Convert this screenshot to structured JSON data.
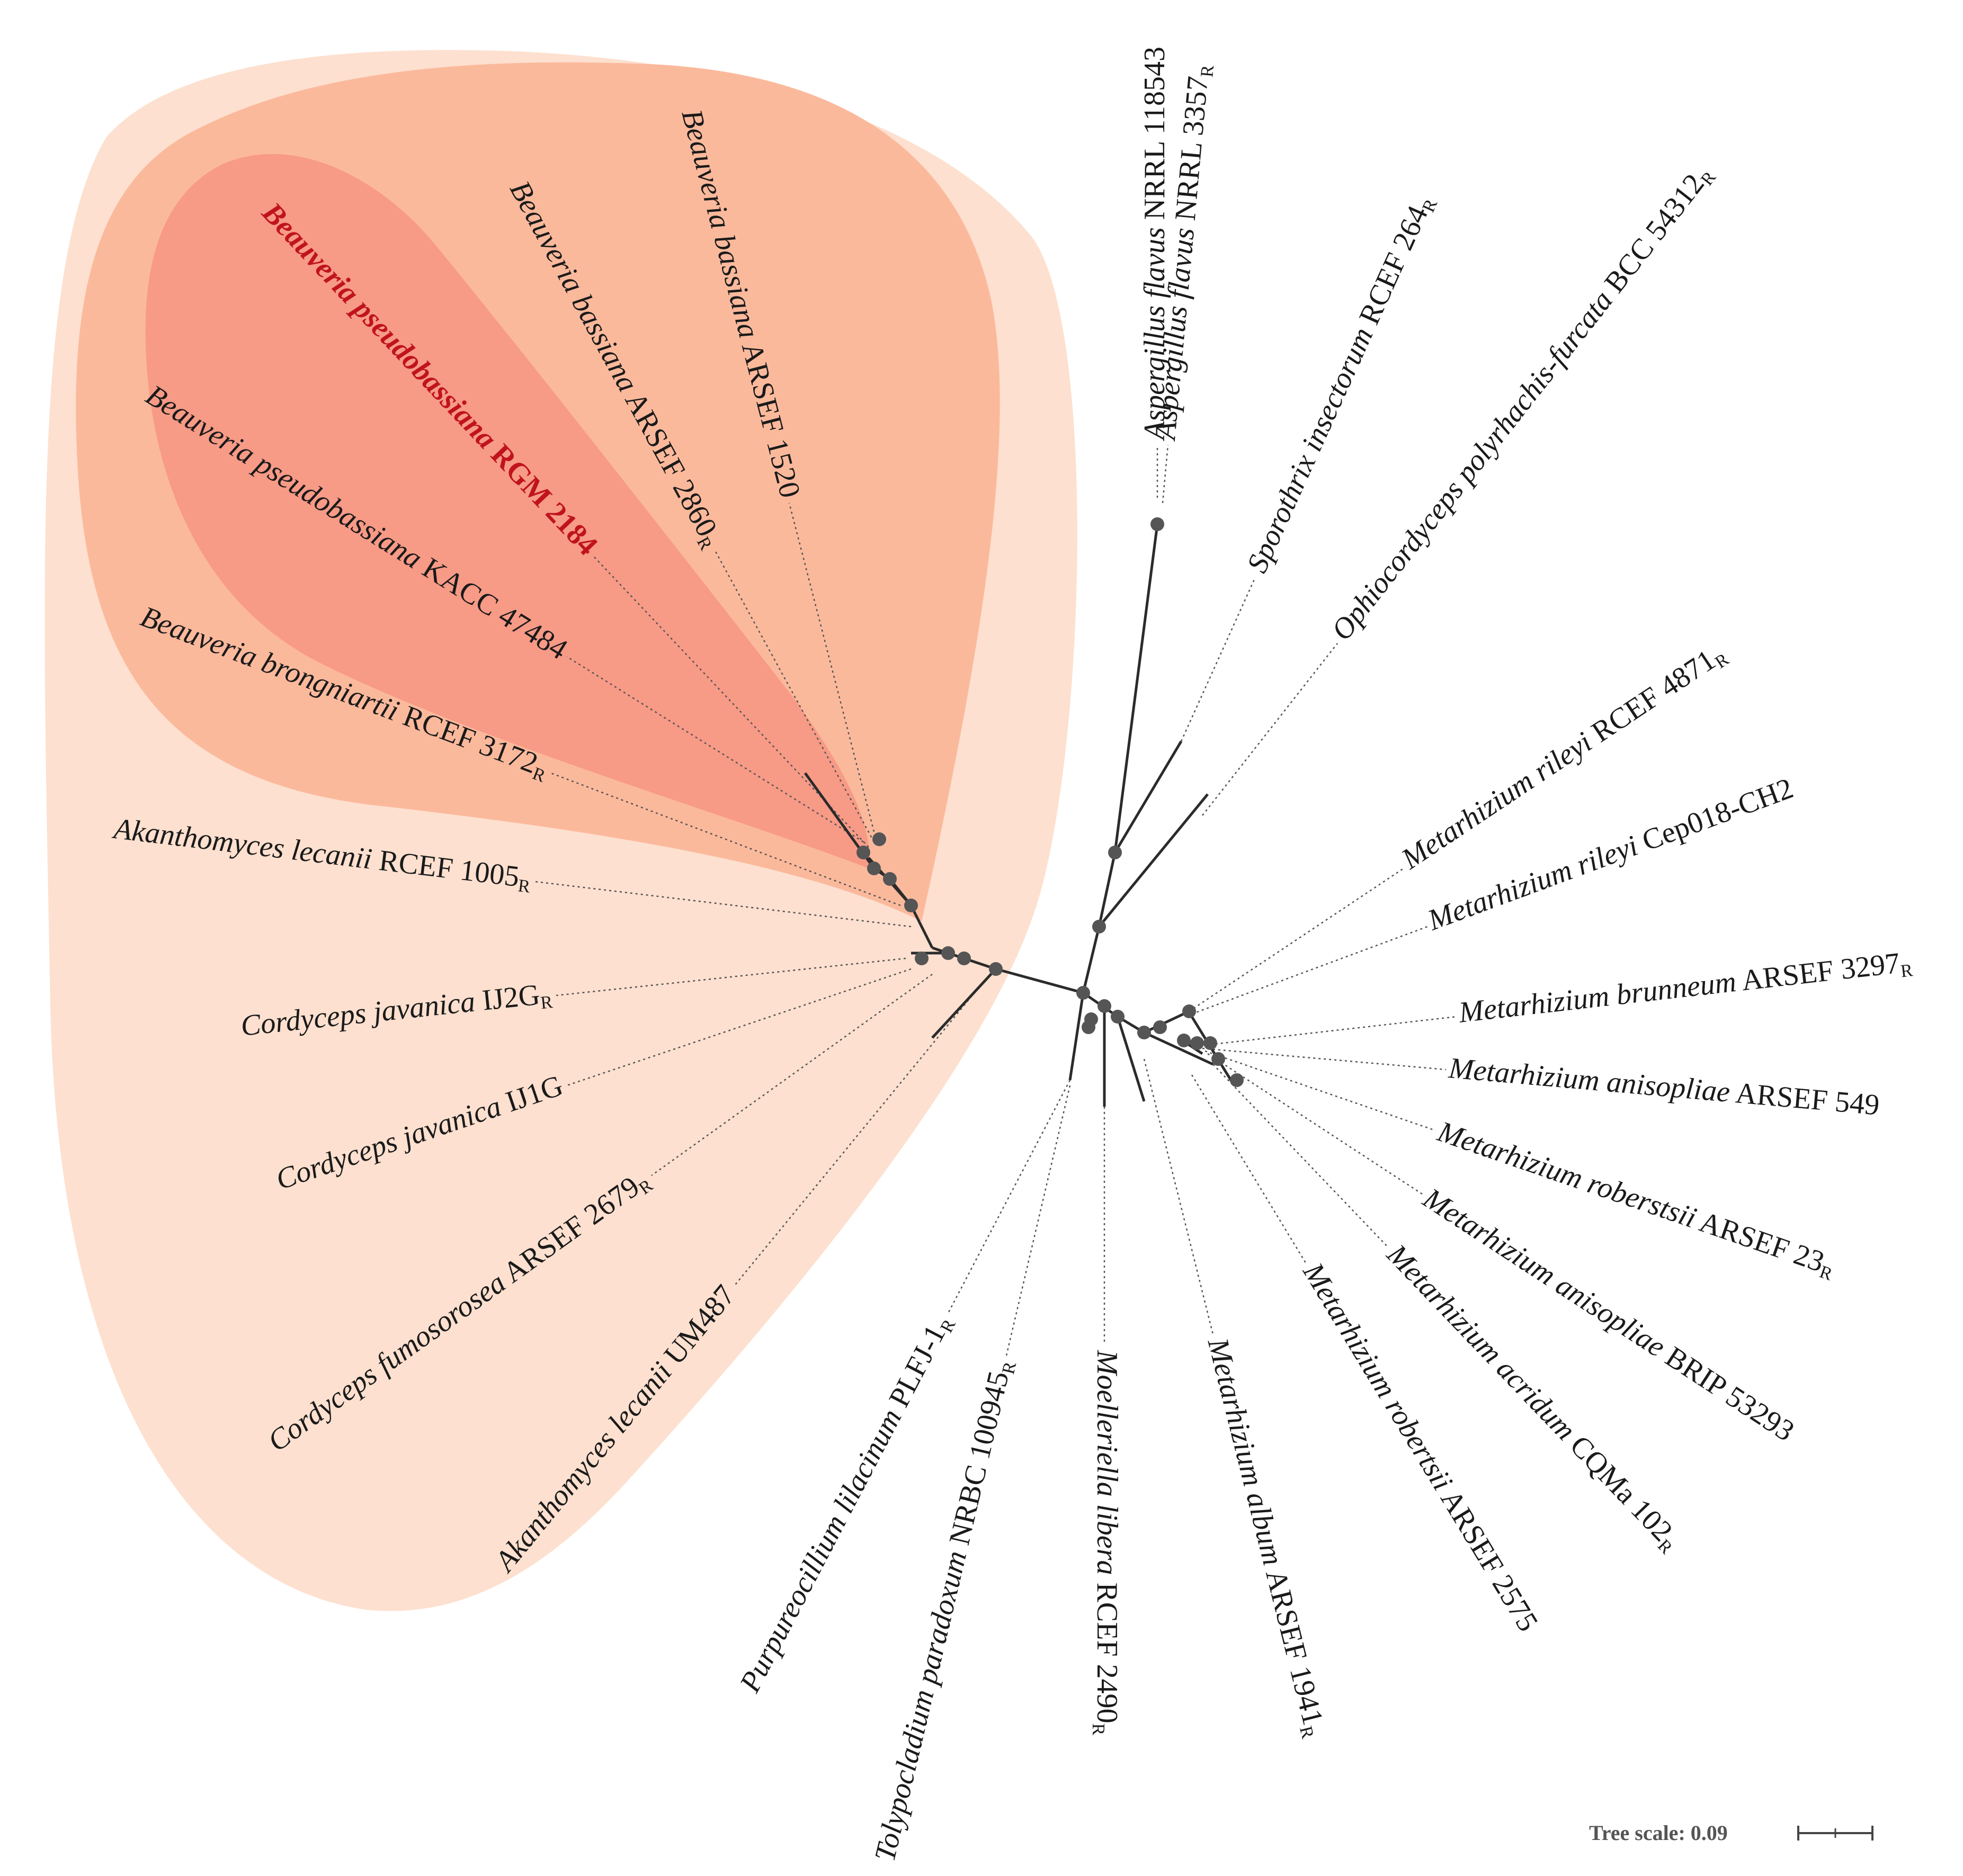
{
  "colors": {
    "clade_outer": "#fde0cf",
    "clade_middle": "#fbb99c",
    "clade_inner": "#f79a86",
    "highlight_text": "#c0141c",
    "node": "#555555"
  },
  "scale": {
    "label": "Tree scale: 0.09"
  },
  "leaves": [
    {
      "id": "asp-118543",
      "genus": "Aspergillus flavus",
      "rest": " NRRL 118543",
      "sub": ""
    },
    {
      "id": "asp-3357",
      "genus": "Aspergillus flavus",
      "rest": " NRRL 3357",
      "sub": "R"
    },
    {
      "id": "spo-264",
      "genus": "Sporothrix insectorum",
      "rest": " RCEF 264",
      "sub": "R"
    },
    {
      "id": "oph-54312",
      "genus": "Ophiocordyceps polyrhachis-furcata",
      "rest": " BCC 54312",
      "sub": "R"
    },
    {
      "id": "mri-4871",
      "genus": "Metarhizium rileyi",
      "rest": " RCEF 4871",
      "sub": "R"
    },
    {
      "id": "mri-cep",
      "genus": "Metarhizium rileyi",
      "rest": " Cep018-CH2",
      "sub": ""
    },
    {
      "id": "mbr-3297",
      "genus": "Metarhizium brunneum",
      "rest": " ARSEF 3297",
      "sub": "R"
    },
    {
      "id": "man-549",
      "genus": "Metarhizium anisopliae",
      "rest": " ARSEF 549",
      "sub": ""
    },
    {
      "id": "mro-23",
      "genus": "Metarhizium roberstsii",
      "rest": " ARSEF 23",
      "sub": "R"
    },
    {
      "id": "man-brip",
      "genus": "Metarhizium anisopliae",
      "rest": " BRIP 53293",
      "sub": ""
    },
    {
      "id": "mac-cqma",
      "genus": "Metarhizium acridum",
      "rest": " CQMa 102",
      "sub": "R"
    },
    {
      "id": "mro-2575",
      "genus": "Metarhizium robertsii",
      "rest": " ARSEF 2575",
      "sub": ""
    },
    {
      "id": "mal-1941",
      "genus": "Metarhizium album",
      "rest": " ARSEF 1941",
      "sub": "R"
    },
    {
      "id": "moe-2490",
      "genus": "Moelleriella libera",
      "rest": " RCEF 2490",
      "sub": "R"
    },
    {
      "id": "tol-100945",
      "genus": "Tolypocladium paradoxum",
      "rest": " NRBC 100945",
      "sub": "R"
    },
    {
      "id": "pur-plfj",
      "genus": "Purpureocillium lilacinum",
      "rest": " PLFJ-1",
      "sub": "R"
    },
    {
      "id": "aka-um487",
      "genus": "Akanthomyces lecanii",
      "rest": " UM487",
      "sub": ""
    },
    {
      "id": "cfu-2679",
      "genus": "Cordyceps fumosorosea",
      "rest": " ARSEF 2679",
      "sub": "R"
    },
    {
      "id": "cja-ij1g",
      "genus": "Cordyceps javanica",
      "rest": " IJ1G",
      "sub": ""
    },
    {
      "id": "cja-ij2g",
      "genus": "Cordyceps javanica",
      "rest": " IJ2G",
      "sub": "R"
    },
    {
      "id": "aka-1005",
      "genus": "Akanthomyces lecanii",
      "rest": " RCEF 1005",
      "sub": "R"
    },
    {
      "id": "bbr-3172",
      "genus": "Beauveria brongniartii",
      "rest": " RCEF 3172",
      "sub": "R"
    },
    {
      "id": "bps-47484",
      "genus": "Beauveria pseudobassiana",
      "rest": " KACC 47484",
      "sub": ""
    },
    {
      "id": "bps-rgm",
      "genus": "Beauveria pseudobassiana",
      "rest": " RGM 2184",
      "sub": "",
      "highlight": true
    },
    {
      "id": "bba-2860",
      "genus": "Beauveria bassiana",
      "rest": " ARSEF 2860",
      "sub": "R"
    },
    {
      "id": "bba-1520",
      "genus": "Beauveria bassiana",
      "rest": " ARSEF 1520",
      "sub": ""
    }
  ]
}
